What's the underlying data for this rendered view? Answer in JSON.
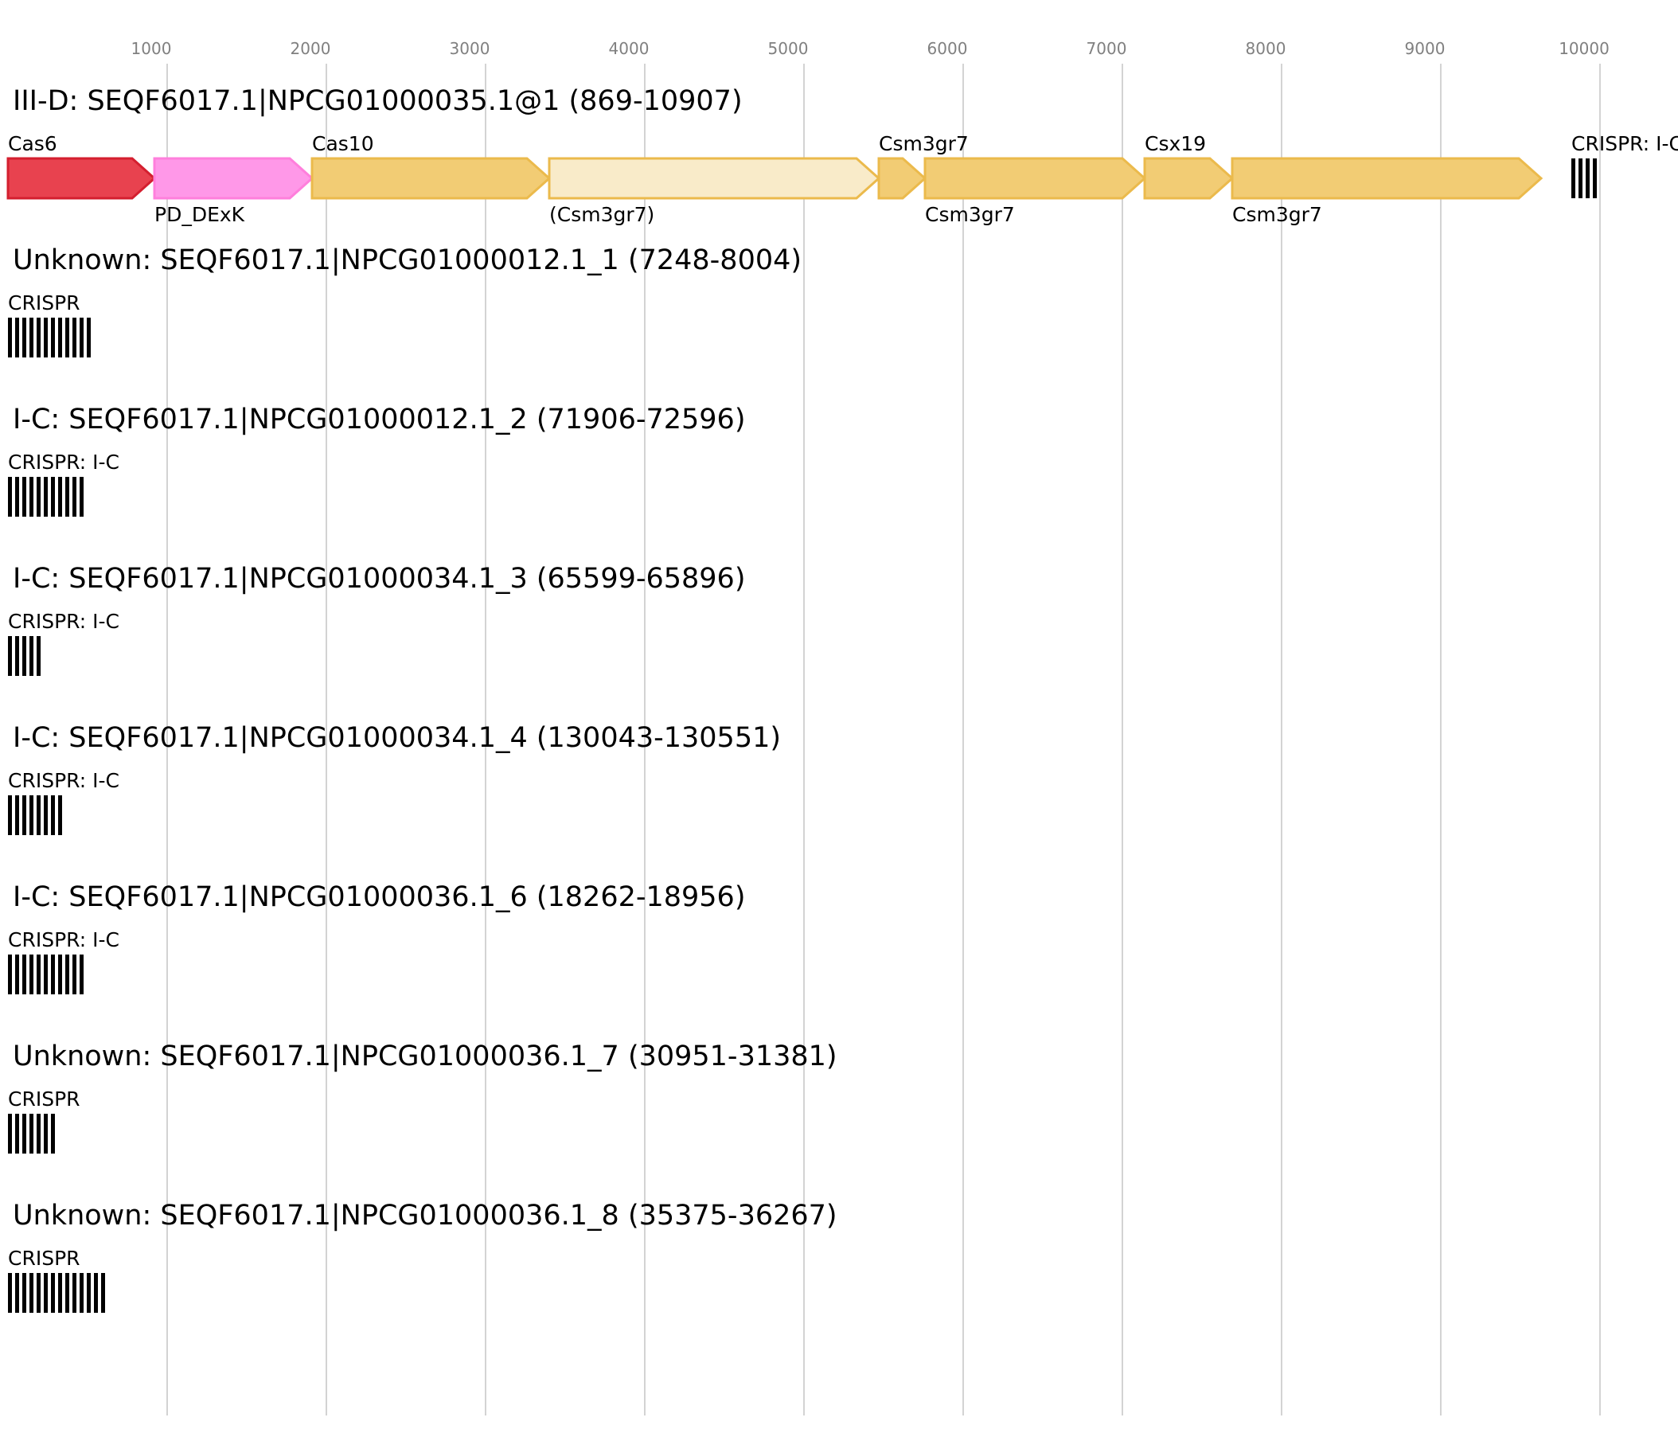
{
  "axis": {
    "ticks": [
      1000,
      2000,
      3000,
      4000,
      5000,
      6000,
      7000,
      8000,
      9000,
      10000
    ],
    "tick_labels": [
      "1000",
      "2000",
      "3000",
      "4000",
      "5000",
      "6000",
      "7000",
      "8000",
      "9000",
      "10000"
    ],
    "min": 0,
    "max": 10500,
    "grid": true,
    "grid_color": "#c0c0c0"
  },
  "loci": [
    {
      "title": "III-D: SEQF6017.1|NPCG01000035.1@1 (869-10907)",
      "genes": [
        {
          "label": "Cas6",
          "start": 0,
          "end": 920,
          "label_pos": "top",
          "fill": "#e8424f",
          "stroke": "#d41f2f",
          "alpha": 1
        },
        {
          "label": "PD_DExK",
          "start": 920,
          "end": 1910,
          "label_pos": "bottom",
          "fill": "#ff98e8",
          "stroke": "#ff7fdc",
          "alpha": 1
        },
        {
          "label": "Cas10",
          "start": 1910,
          "end": 3400,
          "label_pos": "top",
          "fill": "#f2cc74",
          "stroke": "#ebba4c",
          "alpha": 1
        },
        {
          "label": "(Csm3gr7)",
          "start": 3400,
          "end": 5470,
          "label_pos": "bottom",
          "fill": "#f9ebc9",
          "stroke": "#ebba4c",
          "alpha": 1
        },
        {
          "label": "Csm3gr7",
          "start": 5470,
          "end": 5760,
          "label_pos": "top",
          "fill": "#f2cc74",
          "stroke": "#ebba4c",
          "alpha": 1
        },
        {
          "label": "Csm3gr7",
          "start": 5760,
          "end": 7140,
          "label_pos": "bottom",
          "fill": "#f2cc74",
          "stroke": "#ebba4c",
          "alpha": 1
        },
        {
          "label": "Csx19",
          "start": 7140,
          "end": 7690,
          "label_pos": "top",
          "fill": "#f2cc74",
          "stroke": "#ebba4c",
          "alpha": 1
        },
        {
          "label": "Csm3gr7",
          "start": 7690,
          "end": 9630,
          "label_pos": "bottom",
          "fill": "#f2cc74",
          "stroke": "#ebba4c",
          "alpha": 1
        }
      ],
      "crisprs": [
        {
          "label": "CRISPR: I-C",
          "start": 9820,
          "repeats": 4
        }
      ]
    },
    {
      "title": "Unknown: SEQF6017.1|NPCG01000012.1_1 (7248-8004)",
      "genes": [],
      "crisprs": [
        {
          "label": "CRISPR",
          "start": 0,
          "repeats": 12
        }
      ]
    },
    {
      "title": "I-C: SEQF6017.1|NPCG01000012.1_2 (71906-72596)",
      "genes": [],
      "crisprs": [
        {
          "label": "CRISPR: I-C",
          "start": 0,
          "repeats": 11
        }
      ]
    },
    {
      "title": "I-C: SEQF6017.1|NPCG01000034.1_3 (65599-65896)",
      "genes": [],
      "crisprs": [
        {
          "label": "CRISPR: I-C",
          "start": 0,
          "repeats": 5
        }
      ]
    },
    {
      "title": "I-C: SEQF6017.1|NPCG01000034.1_4 (130043-130551)",
      "genes": [],
      "crisprs": [
        {
          "label": "CRISPR: I-C",
          "start": 0,
          "repeats": 8
        }
      ]
    },
    {
      "title": "I-C: SEQF6017.1|NPCG01000036.1_6 (18262-18956)",
      "genes": [],
      "crisprs": [
        {
          "label": "CRISPR: I-C",
          "start": 0,
          "repeats": 11
        }
      ]
    },
    {
      "title": "Unknown: SEQF6017.1|NPCG01000036.1_7 (30951-31381)",
      "genes": [],
      "crisprs": [
        {
          "label": "CRISPR",
          "start": 0,
          "repeats": 7
        }
      ]
    },
    {
      "title": "Unknown: SEQF6017.1|NPCG01000036.1_8 (35375-36267)",
      "genes": [],
      "crisprs": [
        {
          "label": "CRISPR",
          "start": 0,
          "repeats": 14
        }
      ]
    }
  ]
}
